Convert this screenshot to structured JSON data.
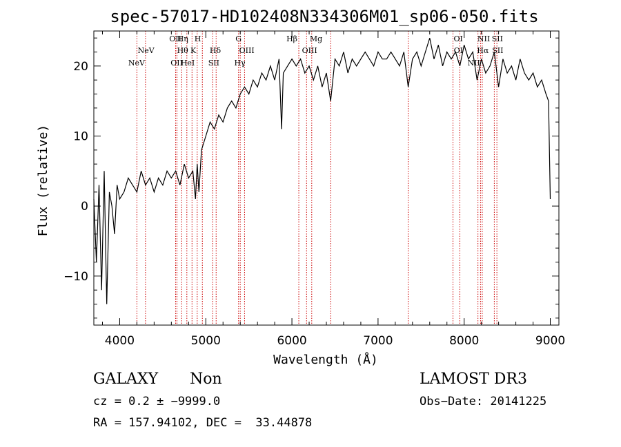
{
  "chart_data": {
    "type": "line",
    "title": "spec-57017-HD102408N334306M01_sp06-050.fits",
    "xlabel": "Wavelength (Å)",
    "ylabel": "Flux (relative)",
    "xlim": [
      3700,
      9100
    ],
    "ylim": [
      -17,
      25
    ],
    "xticks": [
      4000,
      5000,
      6000,
      7000,
      8000,
      9000
    ],
    "yticks": [
      -10,
      0,
      10,
      20
    ],
    "x_tick_labels": [
      "4000",
      "5000",
      "6000",
      "7000",
      "8000",
      "9000"
    ],
    "y_tick_labels": [
      "−10",
      "0",
      "10",
      "20"
    ],
    "series": [
      {
        "name": "spectrum",
        "x": [
          3700,
          3730,
          3760,
          3790,
          3820,
          3850,
          3880,
          3910,
          3940,
          3970,
          4000,
          4050,
          4100,
          4150,
          4200,
          4250,
          4300,
          4350,
          4400,
          4450,
          4500,
          4550,
          4600,
          4650,
          4700,
          4750,
          4800,
          4850,
          4880,
          4900,
          4920,
          4950,
          5000,
          5050,
          5100,
          5150,
          5200,
          5250,
          5300,
          5350,
          5400,
          5450,
          5500,
          5550,
          5600,
          5650,
          5700,
          5750,
          5800,
          5850,
          5880,
          5900,
          5950,
          6000,
          6050,
          6100,
          6150,
          6200,
          6250,
          6300,
          6350,
          6400,
          6450,
          6500,
          6550,
          6600,
          6650,
          6700,
          6750,
          6800,
          6850,
          6900,
          6950,
          7000,
          7050,
          7100,
          7150,
          7200,
          7250,
          7300,
          7350,
          7400,
          7450,
          7500,
          7550,
          7600,
          7650,
          7700,
          7750,
          7800,
          7850,
          7900,
          7950,
          8000,
          8050,
          8100,
          8150,
          8200,
          8250,
          8300,
          8350,
          8400,
          8450,
          8500,
          8550,
          8600,
          8650,
          8700,
          8750,
          8800,
          8850,
          8900,
          8950,
          8980,
          9000
        ],
        "y": [
          1,
          -8,
          3,
          -12,
          5,
          -14,
          2,
          0,
          -4,
          3,
          1,
          2,
          4,
          3,
          2,
          5,
          3,
          4,
          2,
          4,
          3,
          5,
          4,
          5,
          3,
          6,
          4,
          5,
          1,
          6,
          2,
          8,
          10,
          12,
          11,
          13,
          12,
          14,
          15,
          14,
          16,
          17,
          16,
          18,
          17,
          19,
          18,
          20,
          18,
          21,
          11,
          19,
          20,
          21,
          20,
          21,
          19,
          20,
          18,
          20,
          17,
          19,
          15,
          21,
          20,
          22,
          19,
          21,
          20,
          21,
          22,
          21,
          20,
          22,
          21,
          21,
          22,
          21,
          20,
          22,
          17,
          21,
          22,
          20,
          22,
          24,
          21,
          23,
          20,
          22,
          21,
          22,
          20,
          23,
          21,
          22,
          18,
          21,
          19,
          20,
          22,
          17,
          21,
          19,
          20,
          18,
          21,
          19,
          18,
          19,
          17,
          18,
          16,
          15,
          1
        ]
      }
    ],
    "line_labels": [
      {
        "x": 4196,
        "row": 1,
        "text": "NeV"
      },
      {
        "x": 4306,
        "row": 2,
        "text": "NeV"
      },
      {
        "x": 4646,
        "row": 3,
        "text": "OII"
      },
      {
        "x": 4662,
        "row": 1,
        "text": "OII"
      },
      {
        "x": 4731,
        "row": 2,
        "text": "Hθ"
      },
      {
        "x": 4732,
        "row": 3,
        "text": "Hη"
      },
      {
        "x": 4790,
        "row": 1,
        "text": "HeI"
      },
      {
        "x": 4855,
        "row": 2,
        "text": "K"
      },
      {
        "x": 4906,
        "row": 3,
        "text": "H"
      },
      {
        "x": 5093,
        "row": 1,
        "text": "SII"
      },
      {
        "x": 5110,
        "row": 2,
        "text": "Hδ"
      },
      {
        "x": 5380,
        "row": 3,
        "text": "G"
      },
      {
        "x": 5395,
        "row": 1,
        "text": "Hγ"
      },
      {
        "x": 5476,
        "row": 2,
        "text": "OIII"
      },
      {
        "x": 6000,
        "row": 3,
        "text": "Hβ"
      },
      {
        "x": 6205,
        "row": 2,
        "text": "OIII"
      },
      {
        "x": 6280,
        "row": 3,
        "text": "Mg"
      },
      {
        "x": 7933,
        "row": 2,
        "text": "OI"
      },
      {
        "x": 7932,
        "row": 3,
        "text": "OI"
      },
      {
        "x": 8112,
        "row": 1,
        "text": "NII"
      },
      {
        "x": 8217,
        "row": 2,
        "text": "Hα"
      },
      {
        "x": 8227,
        "row": 3,
        "text": "NII"
      },
      {
        "x": 8390,
        "row": 2,
        "text": "SII"
      },
      {
        "x": 8386,
        "row": 3,
        "text": "SII"
      }
    ],
    "line_marker_positions": [
      4200,
      4300,
      4650,
      4665,
      4720,
      4780,
      4840,
      4900,
      4960,
      5080,
      5120,
      5380,
      5400,
      5450,
      6080,
      6170,
      6230,
      6450,
      7350,
      7870,
      7950,
      8160,
      8190,
      8210,
      8350,
      8380
    ]
  },
  "info": {
    "class": "GALAXY",
    "subclass": "Non",
    "survey": "LAMOST DR3",
    "cz": "cz = 0.2 ± −9999.0",
    "obs_date": "Obs−Date: 20141225",
    "radec": "RA = 157.94102, DEC =  33.44878"
  },
  "colors": {
    "line": "#000000",
    "marker": "#cc0000",
    "axis": "#000000"
  }
}
